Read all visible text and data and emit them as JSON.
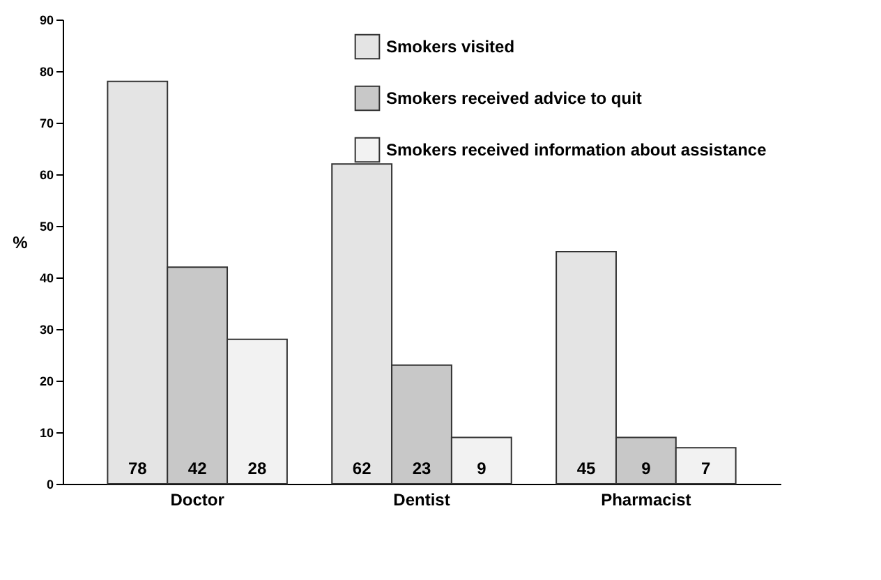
{
  "chart_data": {
    "type": "bar",
    "ylabel": "%",
    "categories": [
      "Doctor",
      "Dentist",
      "Pharmacist"
    ],
    "series": [
      {
        "name": "Smokers visited",
        "color": "#e4e4e4",
        "values": [
          78,
          62,
          45
        ]
      },
      {
        "name": "Smokers received advice to quit",
        "color": "#c8c8c8",
        "values": [
          42,
          23,
          9
        ]
      },
      {
        "name": "Smokers received information about assistance",
        "color": "#f2f2f2",
        "values": [
          28,
          9,
          7
        ]
      }
    ],
    "ylim": [
      0,
      90
    ],
    "yticks": [
      0,
      10,
      20,
      30,
      40,
      50,
      60,
      70,
      80,
      90
    ],
    "data_labels": true,
    "legend": "top right",
    "grid": false
  }
}
